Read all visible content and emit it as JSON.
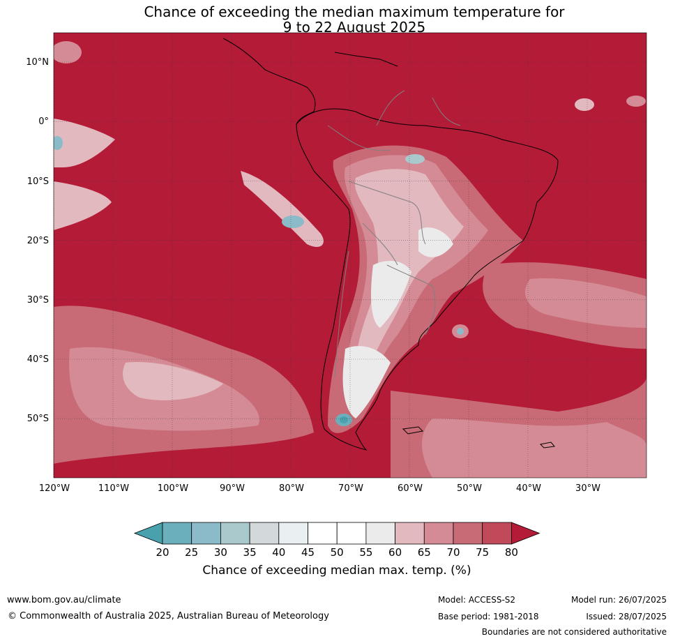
{
  "title": {
    "line1": "Chance of exceeding the median maximum temperature for",
    "line2": "9 to 22 August 2025"
  },
  "map": {
    "region": "South America and surrounding oceans",
    "projection": "equirectangular",
    "lon_range": [
      -120,
      -20
    ],
    "lat_range": [
      -60,
      15
    ],
    "gridlines": true,
    "lat_labels": [
      "10°N",
      "0°",
      "10°S",
      "20°S",
      "30°S",
      "40°S",
      "50°S"
    ],
    "lon_labels": [
      "120°W",
      "110°W",
      "100°W",
      "90°W",
      "80°W",
      "70°W",
      "60°W",
      "50°W",
      "40°W",
      "30°W"
    ],
    "dominant_value": "80+",
    "colors": {
      "ocean_dominant": "#b31b37",
      "land_outline": "#000000",
      "country_borders": "#808080"
    }
  },
  "colorbar": {
    "ticks": [
      "20",
      "25",
      "30",
      "35",
      "40",
      "45",
      "50",
      "55",
      "60",
      "65",
      "70",
      "75",
      "80"
    ],
    "colors": [
      "#4aa1ae",
      "#6aafbb",
      "#8bbbc8",
      "#a9c9cc",
      "#d3d8da",
      "#eaeff2",
      "#ffffff",
      "#ffffff",
      "#ecebec",
      "#e3b9c0",
      "#d48b95",
      "#c86b76",
      "#c04a5a",
      "#b31b37"
    ],
    "caption": "Chance of exceeding median max. temp. (%)"
  },
  "footer": {
    "website": "www.bom.gov.au/climate",
    "copyright": "© Commonwealth of Australia 2025, Australian Bureau of Meteorology",
    "model": "Model: ACCESS-S2",
    "base_period": "Base period: 1981-2018",
    "model_run": "Model run: 26/07/2025",
    "issued": "Issued: 28/07/2025",
    "disclaimer": "Boundaries are not considered authoritative"
  }
}
